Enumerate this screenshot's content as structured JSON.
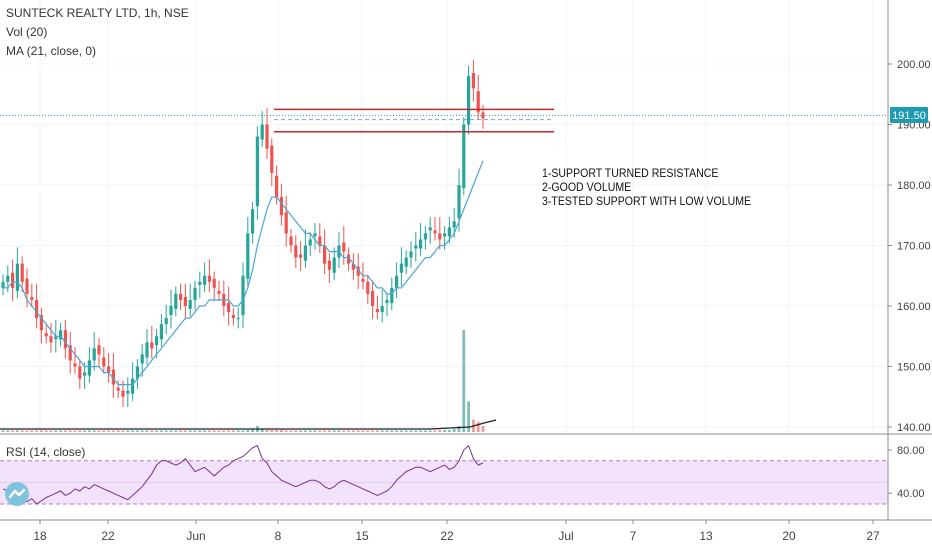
{
  "header": {
    "symbol_line": "SUNTECK REALTY LTD, 1h, NSE",
    "volume_indicator": "Vol (20)",
    "ma_indicator": "MA (21, close, 0)"
  },
  "rsi_panel": {
    "label": "RSI (14, close)"
  },
  "annotation": {
    "lines": [
      "1-SUPPORT TURNED RESISTANCE",
      "2-GOOD VOLUME",
      "3-TESTED SUPPORT WITH LOW VOLUME"
    ]
  },
  "colors": {
    "up": "#26a69a",
    "down": "#ef5350",
    "ma": "#4aa6d8",
    "rsi_line": "#7b2f8f",
    "rsi_band": "#f3e2fb",
    "resistance": "#c62828",
    "price_line": "#1e9bb0"
  },
  "chart_data": {
    "type": "candlestick",
    "price_axis": {
      "ticks": [
        140.0,
        150.0,
        160.0,
        170.0,
        180.0,
        190.0,
        200.0
      ],
      "range": [
        139.5,
        206
      ]
    },
    "current_price": {
      "label": "191.50",
      "value": 191.5
    },
    "resistance_levels": [
      192.5,
      188.8
    ],
    "dashed_level": 190.8,
    "time_axis": {
      "labels": [
        "18",
        "22",
        "Jun",
        "8",
        "15",
        "22",
        "Jul",
        "7",
        "13",
        "20",
        "27"
      ]
    },
    "rsi": {
      "ticks": [
        80.0,
        40.0
      ],
      "band": [
        30,
        70
      ],
      "range": [
        24,
        91
      ]
    },
    "close_series": [
      164,
      165,
      163,
      167,
      164,
      162,
      161,
      158,
      156,
      155,
      154,
      155,
      156,
      153,
      151,
      150,
      148,
      149,
      151,
      153,
      152,
      150,
      149,
      147,
      146,
      145,
      146,
      148,
      150,
      152,
      154,
      153,
      155,
      157,
      158,
      160,
      162,
      161,
      160,
      161,
      163,
      164,
      165,
      164,
      163,
      162,
      160,
      159,
      158,
      158,
      165,
      172,
      176,
      188,
      190,
      186,
      182,
      178,
      175,
      172,
      170,
      168,
      168,
      170,
      171,
      172,
      170,
      167,
      166,
      168,
      170,
      169,
      167,
      166,
      165,
      164,
      162,
      160,
      159,
      160,
      161,
      163,
      165,
      167,
      168,
      169,
      170,
      171,
      172,
      173,
      172,
      171,
      172,
      173,
      174,
      180,
      190,
      198,
      196,
      192,
      191
    ],
    "ma_series": [
      163,
      163,
      164,
      164,
      163,
      161,
      160,
      159,
      158,
      157,
      156,
      155,
      155,
      154,
      153,
      152,
      151,
      150,
      150,
      150,
      150,
      149,
      149,
      148,
      147,
      147,
      147,
      147,
      148,
      149,
      150,
      151,
      152,
      153,
      154,
      155,
      156,
      157,
      158,
      158,
      159,
      160,
      160,
      161,
      161,
      161,
      161,
      161,
      160,
      160,
      161,
      163,
      166,
      170,
      173,
      176,
      178,
      178,
      177,
      176,
      175,
      174,
      173,
      172,
      172,
      171,
      170,
      170,
      169,
      169,
      169,
      168,
      168,
      167,
      166,
      165,
      165,
      164,
      163,
      163,
      162,
      162,
      163,
      163,
      164,
      165,
      166,
      167,
      168,
      168,
      169,
      170,
      170,
      171,
      172,
      174,
      176,
      178,
      180,
      182,
      184
    ],
    "volume_series": [
      1.5,
      1.5,
      1.5,
      1.5,
      1.5,
      1.5,
      1.5,
      1.5,
      1.5,
      1.5,
      1.5,
      1.5,
      1.5,
      1.5,
      1.5,
      1.5,
      1.5,
      1.5,
      1.5,
      1.5,
      1.5,
      1.5,
      1.5,
      1.5,
      1.5,
      1.5,
      1.5,
      1.5,
      1.5,
      1.5,
      1.5,
      1.5,
      1.5,
      1.5,
      1.5,
      1.5,
      1.5,
      1.5,
      1.5,
      1.5,
      1.5,
      1.5,
      1.5,
      1.5,
      1.5,
      1.5,
      1.5,
      1.5,
      1.5,
      1.5,
      1.5,
      2,
      3,
      6,
      3,
      2,
      2,
      2,
      2,
      1.5,
      1.5,
      1.5,
      1.5,
      1.5,
      1.5,
      1.5,
      1.5,
      1.5,
      1.5,
      1.5,
      1.5,
      1.5,
      1.5,
      1.5,
      1.5,
      1.5,
      1.5,
      1.5,
      1.5,
      1.5,
      1.5,
      1.5,
      1.5,
      1.5,
      1.5,
      1.5,
      1.5,
      1.5,
      1.5,
      1.5,
      1.5,
      2,
      2,
      2,
      3,
      6,
      100,
      30,
      12,
      10,
      6
    ],
    "rsi_series": [
      44,
      42,
      38,
      34,
      36,
      32,
      35,
      30,
      33,
      36,
      38,
      40,
      42,
      38,
      40,
      44,
      42,
      46,
      44,
      48,
      46,
      44,
      42,
      40,
      38,
      36,
      34,
      38,
      42,
      46,
      52,
      58,
      66,
      70,
      70,
      68,
      66,
      68,
      72,
      66,
      60,
      62,
      64,
      60,
      56,
      60,
      64,
      66,
      70,
      72,
      74,
      78,
      82,
      84,
      72,
      68,
      60,
      56,
      52,
      50,
      48,
      46,
      48,
      50,
      52,
      52,
      50,
      46,
      44,
      46,
      50,
      52,
      50,
      48,
      46,
      44,
      42,
      40,
      38,
      40,
      42,
      46,
      52,
      56,
      60,
      62,
      64,
      64,
      62,
      60,
      62,
      64,
      66,
      62,
      64,
      70,
      80,
      84,
      72,
      66,
      68
    ]
  }
}
